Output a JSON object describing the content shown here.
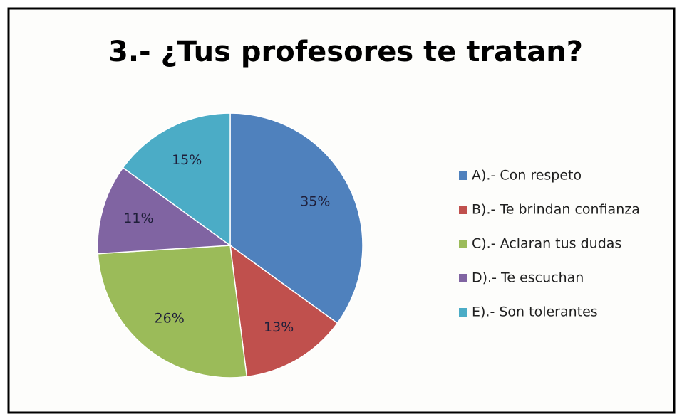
{
  "chart_data": {
    "type": "pie",
    "title": "3.- ¿Tus profesores te tratan?",
    "categories": [
      "A).- Con respeto",
      "B).- Te brindan confianza",
      "C).- Aclaran tus dudas",
      "D).- Te escuchan",
      "E).- Son tolerantes"
    ],
    "values": [
      35,
      13,
      26,
      11,
      15
    ],
    "value_labels": [
      "35%",
      "13%",
      "26%",
      "11%",
      "15%"
    ],
    "colors": [
      "#4f81bd",
      "#c0504d",
      "#9bbb59",
      "#8064a2",
      "#4bacc6"
    ],
    "legend": "right"
  }
}
